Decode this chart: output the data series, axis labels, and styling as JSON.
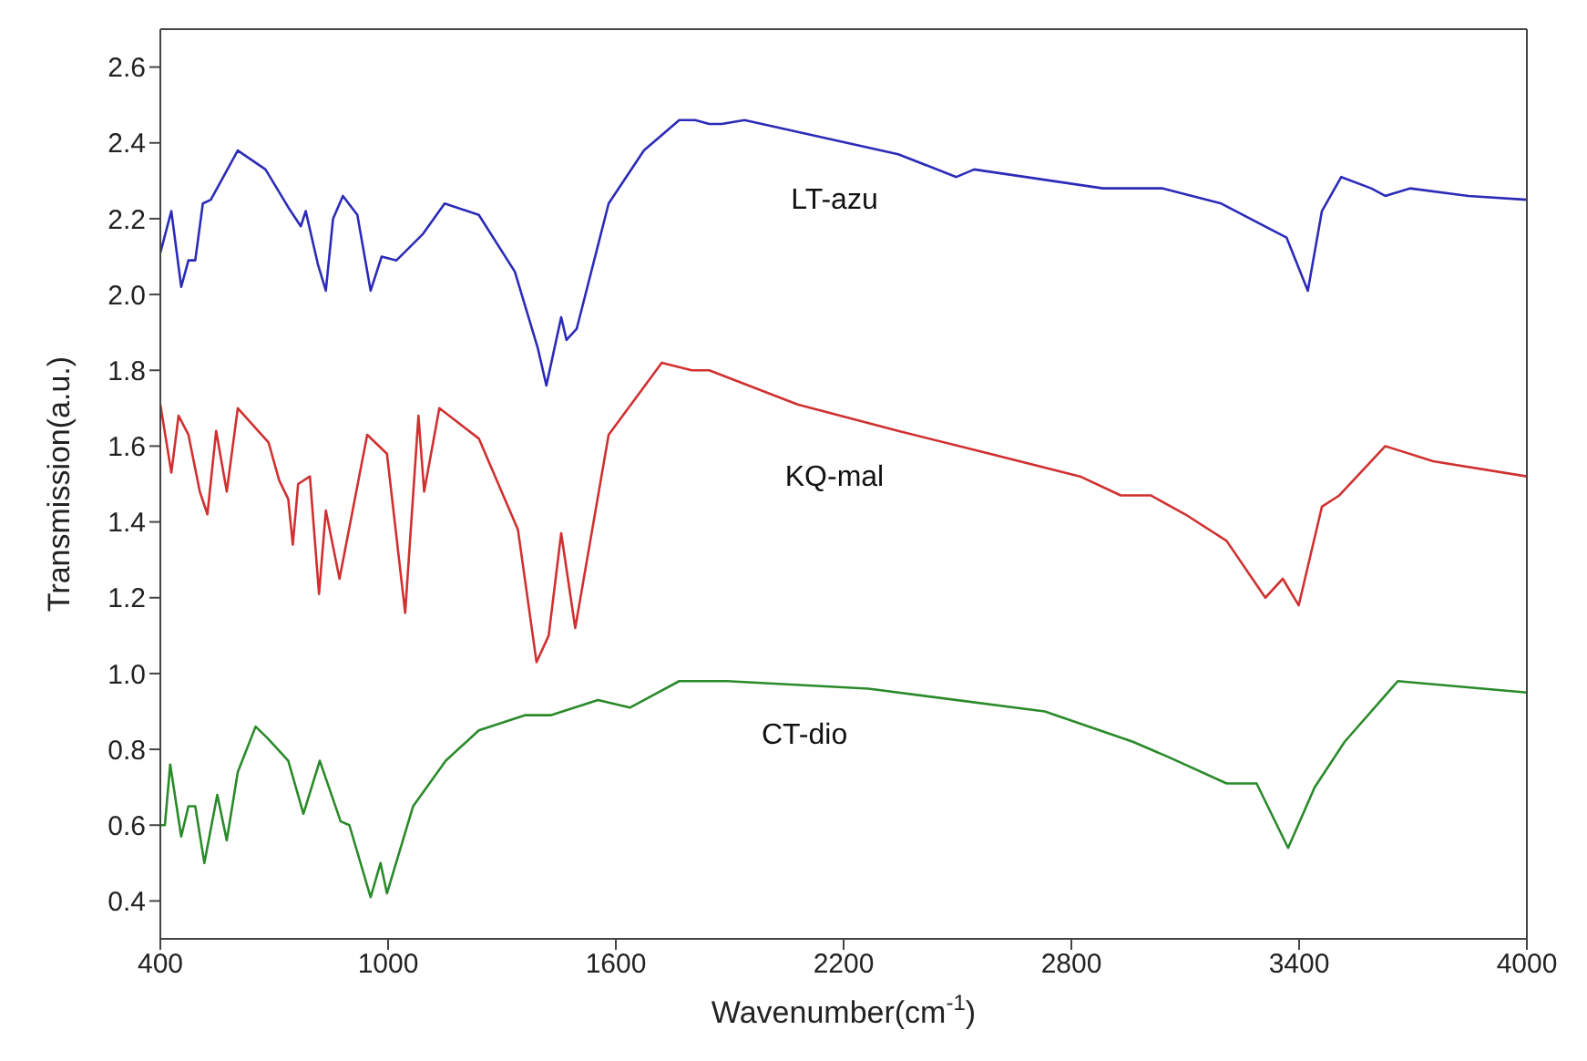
{
  "chart_data": {
    "type": "line",
    "xlabel": "Wavenumber(cm$^{-1}$)",
    "ylabel": "Transmission(a.u.)",
    "xlim": [
      400,
      4000
    ],
    "xticks": [
      400,
      1000,
      1600,
      2200,
      2800,
      3400,
      4000
    ],
    "ylim": [
      0.3,
      2.7
    ],
    "yticks": [
      0.4,
      0.6,
      0.8,
      {
        "value": 1,
        "label": "1.0"
      },
      1.2,
      1.4,
      1.6,
      1.8,
      {
        "value": 2,
        "label": "2.0"
      },
      2.2,
      2.4,
      2.6
    ],
    "grid": false,
    "legend": false,
    "marker": "none",
    "line_style": "solid",
    "series": [
      {
        "name": "LT-azu",
        "color": "#2b2bb8",
        "x": [
          400,
          429,
          455,
          474,
          492,
          512,
          533,
          604,
          677,
          737,
          770,
          783,
          815,
          836,
          855,
          881,
          919,
          954,
          983,
          1022,
          1092,
          1149,
          1239,
          1334,
          1394,
          1417,
          1456,
          1470,
          1497,
          1581,
          1674,
          1767,
          1809,
          1846,
          1879,
          1939,
          2344,
          2497,
          2544,
          2883,
          3041,
          3195,
          3367,
          3423,
          3460,
          3511,
          3590,
          3627,
          3692,
          3846,
          4000
        ],
        "values": [
          2.11,
          2.22,
          2.02,
          2.09,
          2.09,
          2.24,
          2.25,
          2.38,
          2.33,
          2.23,
          2.18,
          2.22,
          2.08,
          2.01,
          2.2,
          2.26,
          2.21,
          2.01,
          2.1,
          2.09,
          2.16,
          2.24,
          2.21,
          2.06,
          1.86,
          1.76,
          1.94,
          1.88,
          1.91,
          2.24,
          2.38,
          2.46,
          2.46,
          2.45,
          2.45,
          2.46,
          2.37,
          2.31,
          2.33,
          2.28,
          2.28,
          2.24,
          2.15,
          2.01,
          2.22,
          2.31,
          2.28,
          2.26,
          2.28,
          2.26,
          2.25
        ]
      },
      {
        "name": "KQ-mal",
        "color": "#d03030",
        "x": [
          400,
          429,
          448,
          474,
          504,
          524,
          547,
          575,
          604,
          685,
          713,
          737,
          749,
          763,
          794,
          818,
          836,
          872,
          945,
          997,
          1045,
          1080,
          1095,
          1135,
          1239,
          1342,
          1391,
          1423,
          1456,
          1493,
          1581,
          1721,
          1800,
          1846,
          2079,
          2344,
          2544,
          2823,
          2930,
          3009,
          3100,
          3209,
          3311,
          3357,
          3399,
          3460,
          3506,
          3627,
          3753,
          4000
        ],
        "values": [
          1.71,
          1.53,
          1.68,
          1.63,
          1.48,
          1.42,
          1.64,
          1.48,
          1.7,
          1.61,
          1.51,
          1.46,
          1.34,
          1.5,
          1.52,
          1.21,
          1.43,
          1.25,
          1.63,
          1.58,
          1.16,
          1.68,
          1.48,
          1.7,
          1.62,
          1.38,
          1.03,
          1.1,
          1.37,
          1.12,
          1.63,
          1.82,
          1.8,
          1.8,
          1.71,
          1.64,
          1.59,
          1.52,
          1.47,
          1.47,
          1.42,
          1.35,
          1.2,
          1.25,
          1.18,
          1.44,
          1.47,
          1.6,
          1.56,
          1.52
        ]
      },
      {
        "name": "CT-dio",
        "color": "#2a8a2a",
        "x": [
          400,
          412,
          426,
          455,
          474,
          492,
          516,
          550,
          575,
          604,
          651,
          682,
          737,
          777,
          820,
          875,
          898,
          954,
          980,
          997,
          1066,
          1152,
          1239,
          1360,
          1428,
          1553,
          1637,
          1767,
          1893,
          2265,
          2730,
          2962,
          3055,
          3209,
          3288,
          3371,
          3441,
          3520,
          3660,
          4000
        ],
        "values": [
          0.6,
          0.6,
          0.76,
          0.57,
          0.65,
          0.65,
          0.5,
          0.68,
          0.56,
          0.74,
          0.86,
          0.83,
          0.77,
          0.63,
          0.77,
          0.61,
          0.6,
          0.41,
          0.5,
          0.42,
          0.65,
          0.77,
          0.85,
          0.89,
          0.89,
          0.93,
          0.91,
          0.98,
          0.98,
          0.96,
          0.9,
          0.82,
          0.78,
          0.71,
          0.71,
          0.54,
          0.7,
          0.82,
          0.98,
          0.95
        ]
      }
    ]
  }
}
